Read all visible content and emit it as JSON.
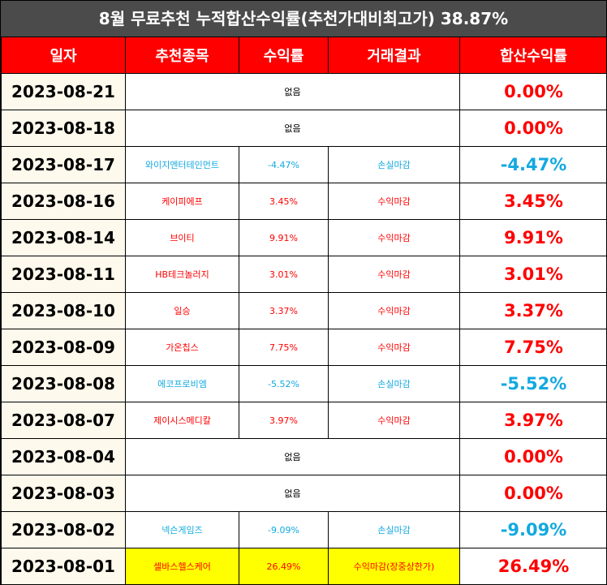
{
  "title": "8월 무료추천 누적합산수익률(추천가대비최고가) 38.87%",
  "headers": [
    "일자",
    "추천종목",
    "수익률",
    "거래결과",
    "합산수익률"
  ],
  "colors": {
    "header_bg": "#ff0000",
    "title_bg": "#4b4b4b",
    "positive": "#ff0000",
    "negative": "#12a9e0",
    "highlight": "#ffff00",
    "date_bg": "#fdf9ec"
  },
  "rows": [
    {
      "date": "2023-08-21",
      "none": "없음",
      "total": "0.00%"
    },
    {
      "date": "2023-08-18",
      "none": "없음",
      "total": "0.00%"
    },
    {
      "date": "2023-08-17",
      "stock": "와이지엔터테인먼트",
      "rate": "-4.47%",
      "result": "손실마감",
      "total": "-4.47%"
    },
    {
      "date": "2023-08-16",
      "stock": "케이피에프",
      "rate": "3.45%",
      "result": "수익마감",
      "total": "3.45%"
    },
    {
      "date": "2023-08-14",
      "stock": "브이티",
      "rate": "9.91%",
      "result": "수익마감",
      "total": "9.91%"
    },
    {
      "date": "2023-08-11",
      "stock": "HB테크놀러지",
      "rate": "3.01%",
      "result": "수익마감",
      "total": "3.01%"
    },
    {
      "date": "2023-08-10",
      "stock": "일승",
      "rate": "3.37%",
      "result": "수익마감",
      "total": "3.37%"
    },
    {
      "date": "2023-08-09",
      "stock": "가온칩스",
      "rate": "7.75%",
      "result": "수익마감",
      "total": "7.75%"
    },
    {
      "date": "2023-08-08",
      "stock": "에코프로비엠",
      "rate": "-5.52%",
      "result": "손실마감",
      "total": "-5.52%"
    },
    {
      "date": "2023-08-07",
      "stock": "제이시스메디칼",
      "rate": "3.97%",
      "result": "수익마감",
      "total": "3.97%"
    },
    {
      "date": "2023-08-04",
      "none": "없음",
      "total": "0.00%"
    },
    {
      "date": "2023-08-03",
      "none": "없음",
      "total": "0.00%"
    },
    {
      "date": "2023-08-02",
      "stock": "넥슨게임즈",
      "rate": "-9.09%",
      "result": "손실마감",
      "total": "-9.09%"
    },
    {
      "date": "2023-08-01",
      "stock": "셀바스헬스케어",
      "rate": "26.49%",
      "result": "수익마감(장중상한가)",
      "total": "26.49%",
      "highlight": true
    }
  ]
}
